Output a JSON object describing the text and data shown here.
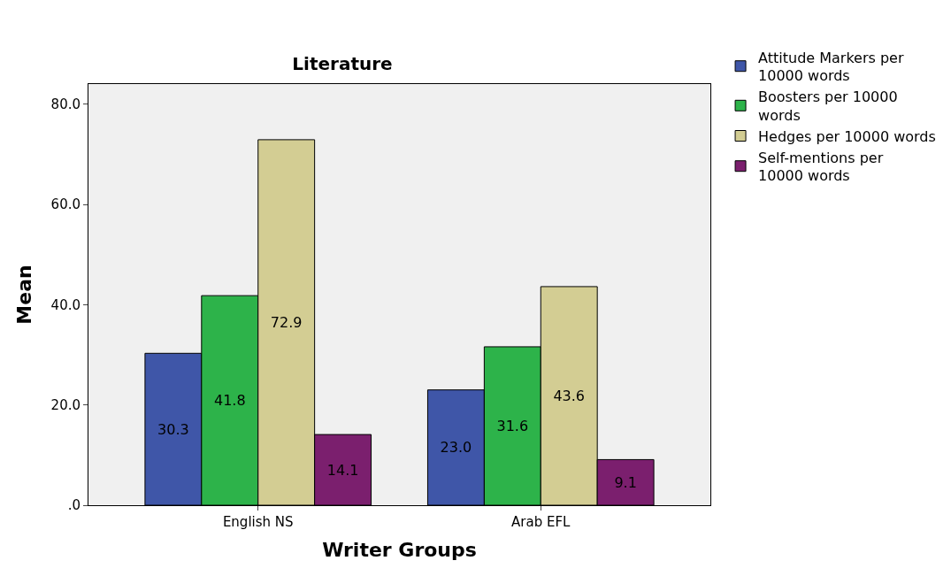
{
  "chart_data": {
    "type": "bar",
    "title": "Literature",
    "xlabel": "Writer Groups",
    "ylabel": "Mean",
    "categories": [
      "English NS",
      "Arab EFL"
    ],
    "series": [
      {
        "name": "Attitude Markers per 10000 words",
        "color": "#3f56a8",
        "values": [
          30.3,
          23.0
        ],
        "value_labels": [
          "30.3",
          "23.0"
        ]
      },
      {
        "name": "Boosters per 10000 words",
        "color": "#2db34a",
        "values": [
          41.8,
          31.6
        ],
        "value_labels": [
          "41.8",
          "31.6"
        ]
      },
      {
        "name": "Hedges per 10000 words",
        "color": "#d3cd93",
        "values": [
          72.9,
          43.6
        ],
        "value_labels": [
          "72.9",
          "43.6"
        ]
      },
      {
        "name": "Self-mentions per 10000 words",
        "color": "#7b1f6e",
        "values": [
          14.1,
          9.1
        ],
        "value_labels": [
          "14.1",
          "9.1"
        ]
      }
    ],
    "ylim": [
      0,
      84
    ],
    "yticks": [
      {
        "value": 0,
        "label": ".0"
      },
      {
        "value": 20,
        "label": "20.0"
      },
      {
        "value": 40,
        "label": "40.0"
      },
      {
        "value": 60,
        "label": "60.0"
      },
      {
        "value": 80,
        "label": "80.0"
      }
    ],
    "grid": false,
    "legend": "top right"
  }
}
